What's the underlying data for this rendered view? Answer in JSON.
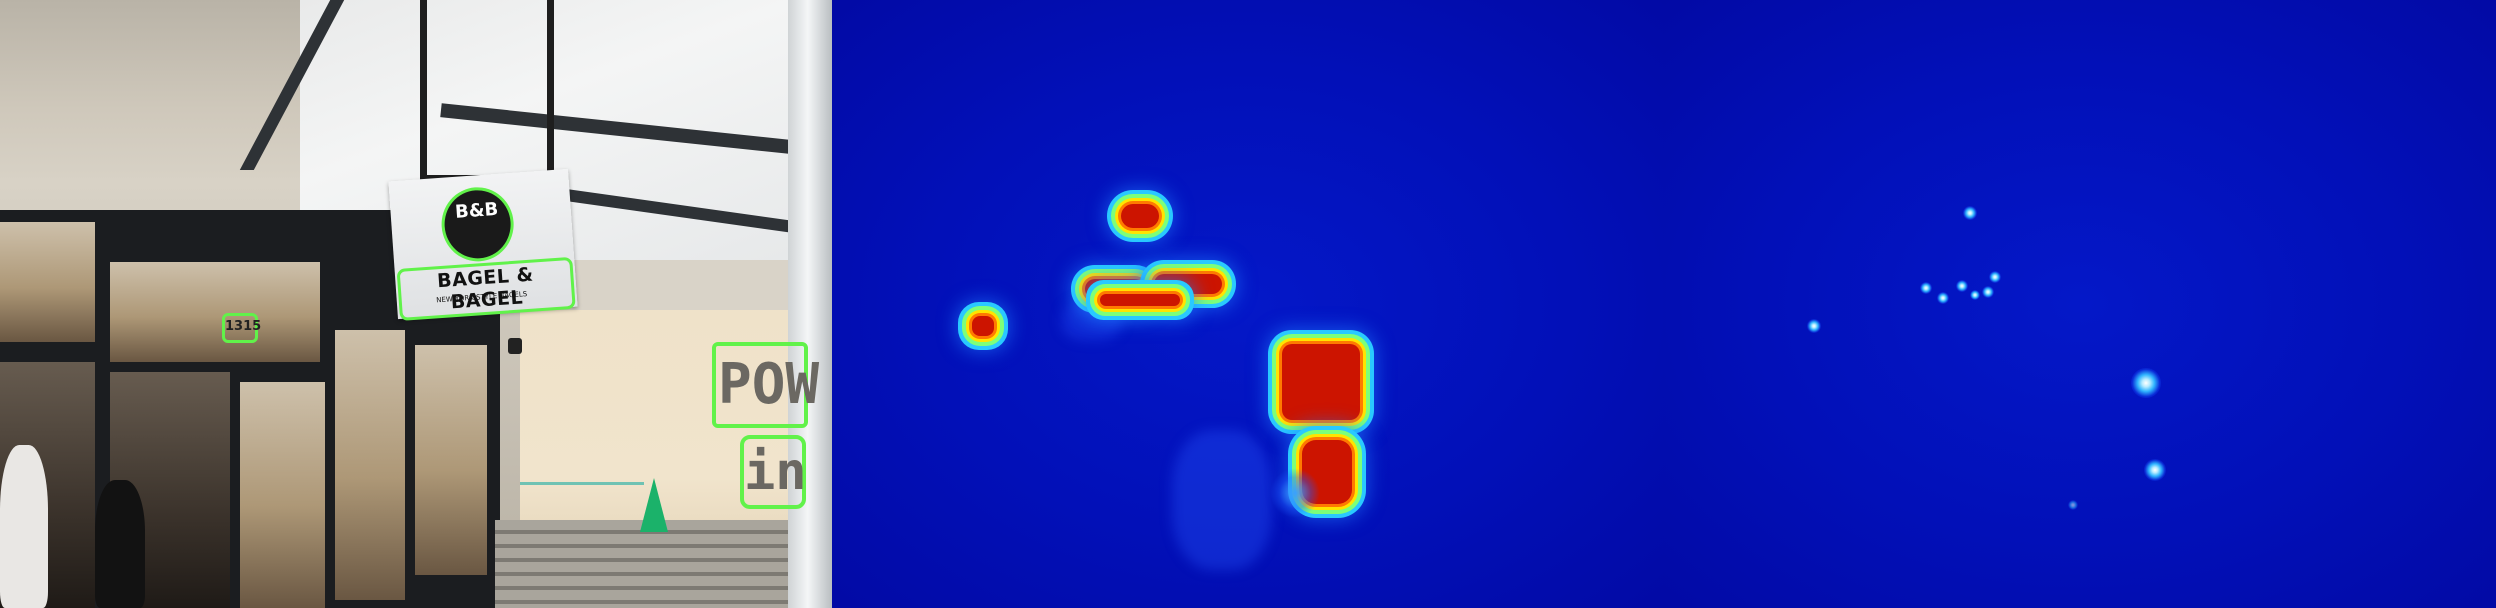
{
  "panels": [
    {
      "name": "photo"
    },
    {
      "name": "region-heatmap"
    },
    {
      "name": "point-heatmap"
    }
  ],
  "photo": {
    "sign_logo_text": "B&B",
    "sign_name_text": "BAGEL & BAGEL",
    "sign_tagline_text": "NEW YORK STYLE BAGELS",
    "shop_number_text": "1315",
    "poster_text_1": "POW",
    "poster_text_2": "in"
  },
  "colors": {
    "detection_outline": "#61f24a",
    "heatmap_background": "#0210b8",
    "heatmap_hot": "#cc1400"
  }
}
